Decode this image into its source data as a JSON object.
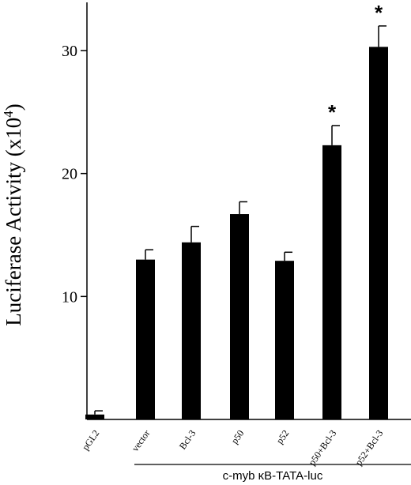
{
  "chart_data": {
    "type": "bar",
    "categories": [
      "pGL2",
      "vector",
      "Bcl-3",
      "p50",
      "p52",
      "p50+Bcl-3",
      "p52+Bcl-3"
    ],
    "values": [
      0.4,
      13.0,
      14.4,
      16.7,
      12.9,
      22.3,
      30.3
    ],
    "errors": [
      0.3,
      0.8,
      1.3,
      1.0,
      0.7,
      1.6,
      1.7
    ],
    "significance": [
      "",
      "",
      "",
      "",
      "",
      "*",
      "*"
    ],
    "ylabel": "Luciferase Activity (x10",
    "ylabel_superscript": "4",
    "ylabel_close": ")",
    "yticks": [
      10,
      20,
      30
    ],
    "ylim": [
      0,
      34
    ],
    "group_label": "c-myb κB-TATA-luc",
    "group_categories": [
      "vector",
      "Bcl-3",
      "p50",
      "p52",
      "p50+Bcl-3",
      "p52+Bcl-3"
    ],
    "bar_color": "#000000",
    "grid": false
  }
}
